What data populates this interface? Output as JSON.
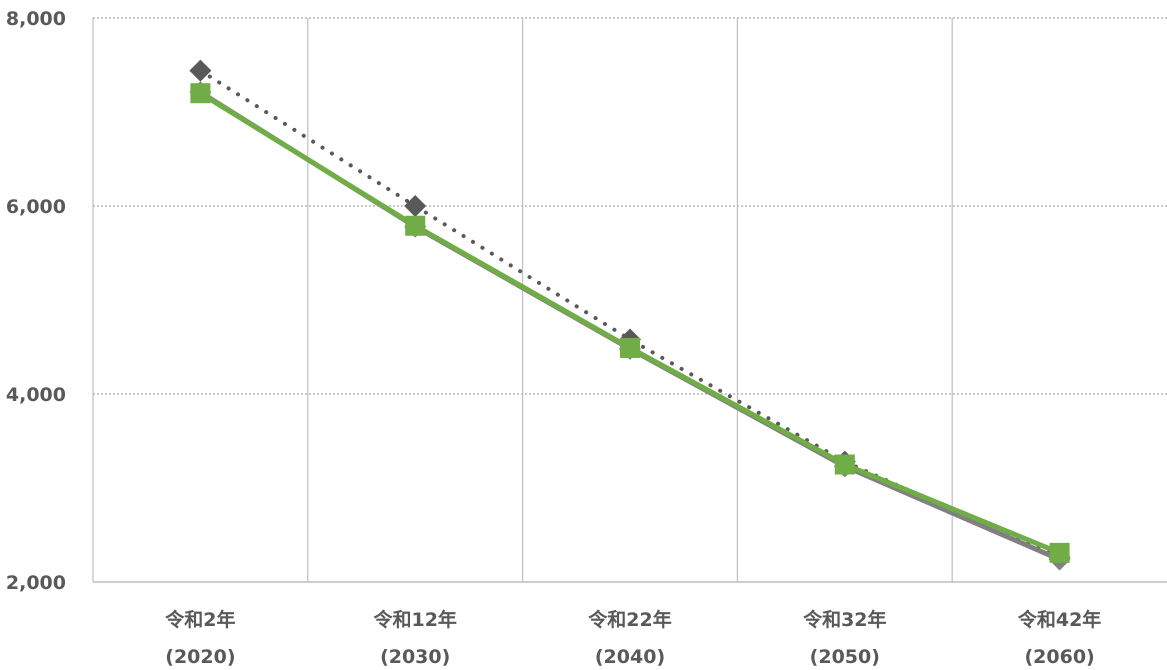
{
  "chart_data": {
    "type": "line",
    "categories": [
      [
        "令和2年",
        "(2020)"
      ],
      [
        "令和12年",
        "(2030)"
      ],
      [
        "令和22年",
        "(2040)"
      ],
      [
        "令和32年",
        "(2050)"
      ],
      [
        "令和42年",
        "(2060)"
      ]
    ],
    "ylim": [
      2000,
      8000
    ],
    "yticks": [
      2000,
      4000,
      6000,
      8000
    ],
    "ytick_labels": [
      "2,000",
      "4,000",
      "6,000",
      "8,000"
    ],
    "grid": {
      "horizontal": "dotted",
      "vertical": "solid"
    },
    "series": [
      {
        "values": [
          7440,
          6000,
          4580,
          3280,
          2260
        ],
        "color": "#595959",
        "line_style": "dotted",
        "marker": "diamond"
      },
      {
        "values": [
          7210,
          5780,
          4480,
          3230,
          2240
        ],
        "color": "#808080",
        "line_style": "solid",
        "marker": "diamond"
      },
      {
        "values": [
          7200,
          5790,
          4490,
          3250,
          2310
        ],
        "color": "#70ad47",
        "line_style": "solid",
        "marker": "square"
      }
    ],
    "colors": {
      "axis_text": "#595959",
      "grid": "#bfbfbf",
      "axis_line": "#bfbfbf"
    }
  }
}
